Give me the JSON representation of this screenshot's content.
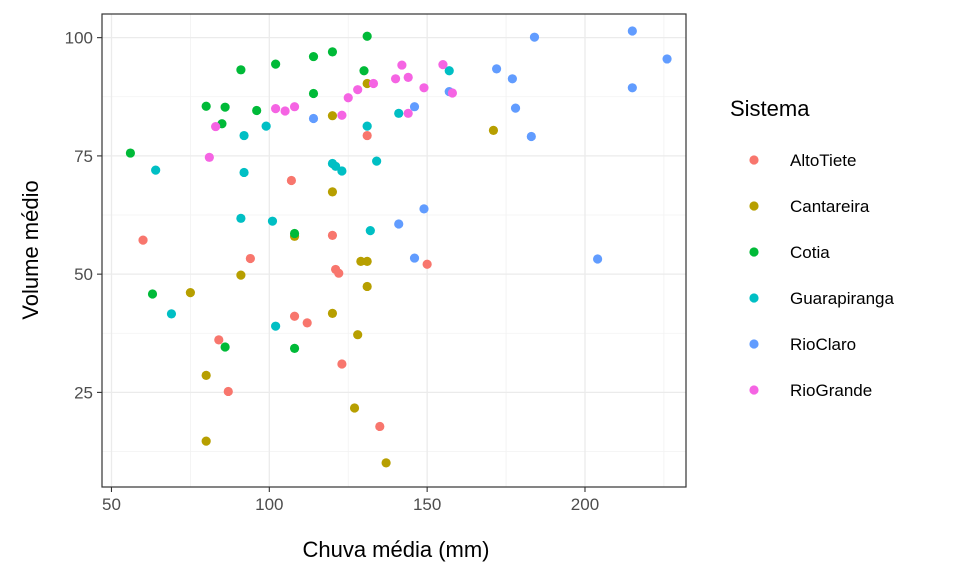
{
  "chart_data": {
    "type": "scatter",
    "xlabel": "Chuva média (mm)",
    "ylabel": "Volume médio",
    "xlim": [
      47,
      232
    ],
    "ylim": [
      5,
      105
    ],
    "x_ticks": [
      50,
      100,
      150,
      200
    ],
    "y_ticks": [
      25,
      50,
      75,
      100
    ],
    "grid": true,
    "legend": {
      "title": "Sistema",
      "position": "right"
    },
    "series": [
      {
        "name": "AltoTiete",
        "color": "#F8766D",
        "points": [
          [
            60,
            57.2
          ],
          [
            94,
            53.3
          ],
          [
            107,
            69.8
          ],
          [
            108,
            41.1
          ],
          [
            112,
            39.7
          ],
          [
            120,
            58.2
          ],
          [
            121,
            51.0
          ],
          [
            122,
            50.2
          ],
          [
            123,
            31.0
          ],
          [
            131,
            79.3
          ],
          [
            135,
            17.8
          ],
          [
            150,
            52.1
          ],
          [
            84,
            36.1
          ],
          [
            87,
            25.2
          ]
        ]
      },
      {
        "name": "Cantareira",
        "color": "#B79F00",
        "points": [
          [
            75,
            46.1
          ],
          [
            80,
            28.6
          ],
          [
            80,
            14.7
          ],
          [
            91,
            49.8
          ],
          [
            108,
            58.0
          ],
          [
            120,
            67.4
          ],
          [
            120,
            41.7
          ],
          [
            120,
            83.5
          ],
          [
            127,
            21.7
          ],
          [
            128,
            37.2
          ],
          [
            129,
            52.7
          ],
          [
            131,
            52.7
          ],
          [
            131,
            47.4
          ],
          [
            131,
            90.3
          ],
          [
            137,
            10.1
          ],
          [
            171,
            80.4
          ]
        ]
      },
      {
        "name": "Cotia",
        "color": "#00BA38",
        "points": [
          [
            56,
            75.6
          ],
          [
            63,
            45.8
          ],
          [
            80,
            85.5
          ],
          [
            85,
            81.8
          ],
          [
            86,
            85.3
          ],
          [
            86,
            34.6
          ],
          [
            91,
            93.2
          ],
          [
            96,
            84.6
          ],
          [
            102,
            94.4
          ],
          [
            108,
            58.6
          ],
          [
            108,
            34.3
          ],
          [
            114,
            88.2
          ],
          [
            114,
            96.0
          ],
          [
            120,
            97.0
          ],
          [
            130,
            93.0
          ],
          [
            131,
            100.3
          ]
        ]
      },
      {
        "name": "Guarapiranga",
        "color": "#00BFC4",
        "points": [
          [
            64,
            72.0
          ],
          [
            69,
            41.6
          ],
          [
            91,
            61.8
          ],
          [
            92,
            79.3
          ],
          [
            92,
            71.5
          ],
          [
            99,
            81.3
          ],
          [
            101,
            61.2
          ],
          [
            102,
            39.0
          ],
          [
            120,
            73.4
          ],
          [
            121,
            72.8
          ],
          [
            123,
            71.8
          ],
          [
            131,
            81.3
          ],
          [
            132,
            59.2
          ],
          [
            134,
            73.9
          ],
          [
            141,
            84.0
          ],
          [
            157,
            93.0
          ]
        ]
      },
      {
        "name": "RioClaro",
        "color": "#619CFF",
        "points": [
          [
            114,
            82.9
          ],
          [
            141,
            60.6
          ],
          [
            146,
            53.4
          ],
          [
            146,
            85.4
          ],
          [
            149,
            63.8
          ],
          [
            157,
            88.6
          ],
          [
            172,
            93.4
          ],
          [
            177,
            91.3
          ],
          [
            178,
            85.1
          ],
          [
            183,
            79.1
          ],
          [
            184,
            100.1
          ],
          [
            204,
            53.2
          ],
          [
            215,
            101.4
          ],
          [
            215,
            89.4
          ],
          [
            226,
            95.5
          ]
        ]
      },
      {
        "name": "RioGrande",
        "color": "#F564E3",
        "points": [
          [
            81,
            74.7
          ],
          [
            83,
            81.2
          ],
          [
            102,
            85.0
          ],
          [
            105,
            84.5
          ],
          [
            108,
            85.4
          ],
          [
            123,
            83.6
          ],
          [
            125,
            87.3
          ],
          [
            128,
            89.0
          ],
          [
            133,
            90.3
          ],
          [
            140,
            91.3
          ],
          [
            142,
            94.2
          ],
          [
            144,
            91.6
          ],
          [
            144,
            84.0
          ],
          [
            149,
            89.4
          ],
          [
            155,
            94.3
          ],
          [
            158,
            88.3
          ]
        ]
      }
    ]
  }
}
